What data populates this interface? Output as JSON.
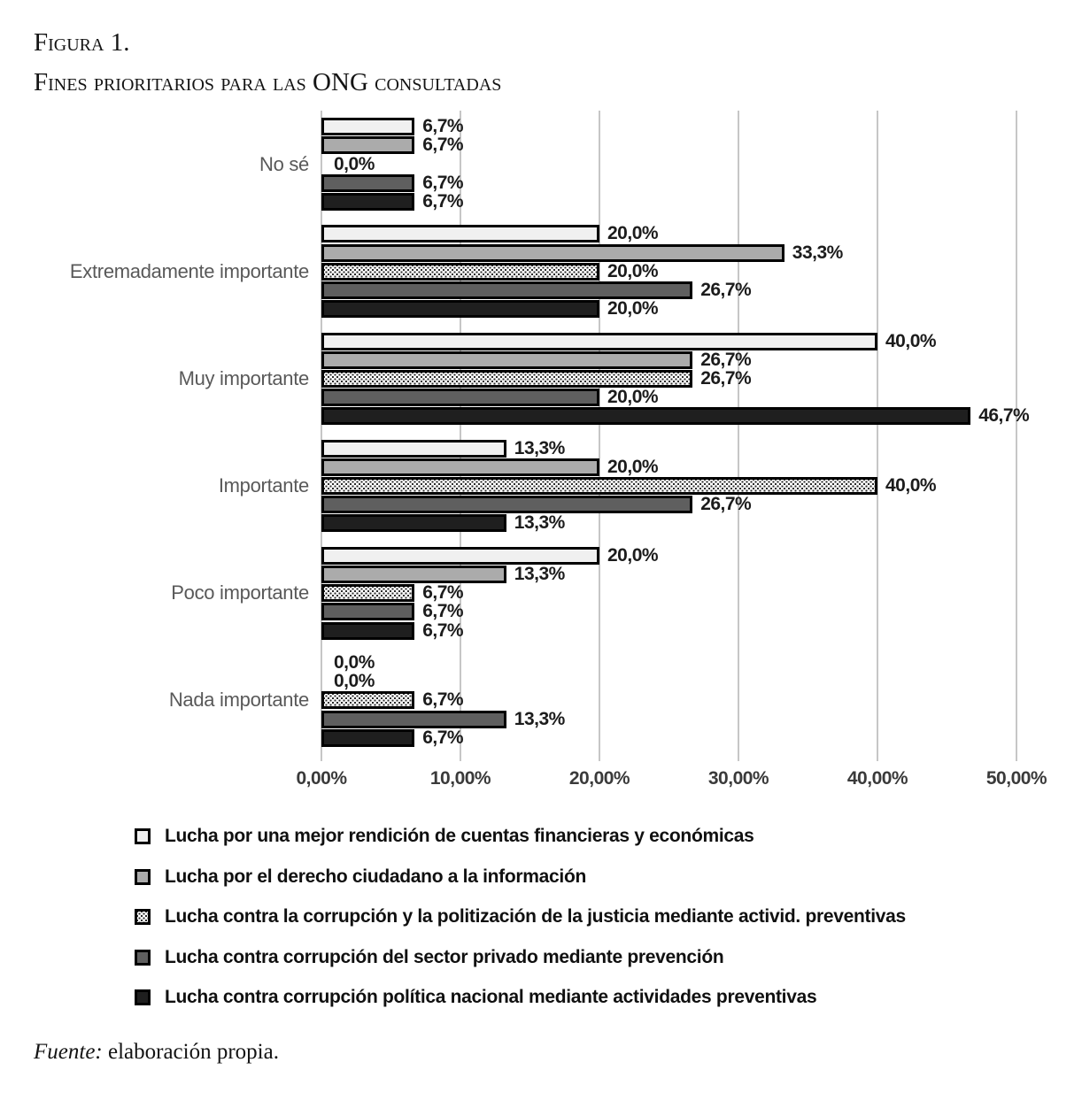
{
  "title": {
    "line1": "Figura 1.",
    "line2": "Fines prioritarios para las ONG consultadas"
  },
  "source": {
    "prefix": "Fuente:",
    "text": " elaboración propia."
  },
  "colors": {
    "grid": "#c6c6c6",
    "bar_border": "#000000",
    "category_label": "#595959",
    "data_label": "#1c1c1c",
    "axis_label": "#3a3a3a",
    "legend_text": "#101010"
  },
  "chart_data": {
    "type": "bar",
    "orientation": "horizontal",
    "grid": true,
    "legend_position": "bottom-left",
    "value_format": "comma-decimal-percent",
    "xlim": [
      0,
      50
    ],
    "x_ticks": [
      "0,00%",
      "10,00%",
      "20,00%",
      "30,00%",
      "40,00%",
      "50,00%"
    ],
    "x_tick_values": [
      0,
      10,
      20,
      30,
      40,
      50
    ],
    "categories": [
      "No sé",
      "Extremadamente importante",
      "Muy importante",
      "Importante",
      "Poco importante",
      "Nada importante"
    ],
    "series": [
      {
        "name": "Lucha por una mejor rendición de cuentas financieras y económicas",
        "fill": "#f0f0f0",
        "pattern": false,
        "values": [
          6.7,
          20.0,
          40.0,
          13.3,
          20.0,
          0.0
        ]
      },
      {
        "name": "Lucha por el derecho ciudadano a la información",
        "fill": "#ababab",
        "pattern": false,
        "values": [
          6.7,
          33.3,
          26.7,
          20.0,
          13.3,
          0.0
        ]
      },
      {
        "name": "Lucha contra la corrupción y la politización de la justicia mediante activid. preventivas",
        "fill": "pattern",
        "pattern": true,
        "values": [
          0.0,
          20.0,
          26.7,
          40.0,
          6.7,
          6.7
        ]
      },
      {
        "name": "Lucha contra corrupción del sector privado mediante prevención",
        "fill": "#5f5f5f",
        "pattern": false,
        "values": [
          6.7,
          26.7,
          20.0,
          26.7,
          6.7,
          13.3
        ]
      },
      {
        "name": "Lucha contra corrupción política nacional mediante actividades preventivas",
        "fill": "#1f1f1f",
        "pattern": false,
        "values": [
          6.7,
          20.0,
          46.7,
          13.3,
          6.7,
          6.7
        ]
      }
    ]
  }
}
